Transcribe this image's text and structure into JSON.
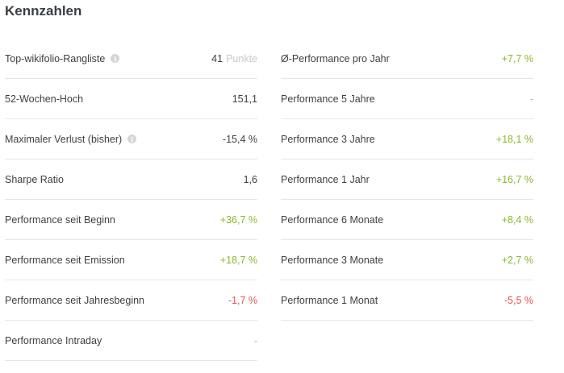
{
  "title": "Kennzahlen",
  "colors": {
    "positive": "#8cb82b",
    "negative": "#e9534f",
    "neutral": "#3c4146",
    "muted": "#c4c9cd",
    "divider": "#e3e6e9",
    "info_icon": "#d2d6da"
  },
  "left_rows": [
    {
      "label": "Top-wikifolio-Rangliste",
      "info_icon": "info-icon",
      "value": "41",
      "unit": "Punkte",
      "tone": "neutral"
    },
    {
      "label": "52-Wochen-Hoch",
      "value": "151,1",
      "tone": "neutral"
    },
    {
      "label": "Maximaler Verlust (bisher)",
      "info_icon": "info-icon",
      "value": "-15,4 %",
      "tone": "neutral"
    },
    {
      "label": "Sharpe Ratio",
      "value": "1,6",
      "tone": "neutral"
    },
    {
      "label": "Performance seit Beginn",
      "value": "+36,7 %",
      "tone": "positive"
    },
    {
      "label": "Performance seit Emission",
      "value": "+18,7 %",
      "tone": "positive"
    },
    {
      "label": "Performance seit Jahresbeginn",
      "value": "-1,7 %",
      "tone": "negative"
    },
    {
      "label": "Performance Intraday",
      "value": "-",
      "tone": "empty"
    }
  ],
  "right_rows": [
    {
      "label": "Ø-Performance pro Jahr",
      "value": "+7,7 %",
      "tone": "positive"
    },
    {
      "label": "Performance 5 Jahre",
      "value": "-",
      "tone": "empty"
    },
    {
      "label": "Performance 3 Jahre",
      "value": "+18,1 %",
      "tone": "positive"
    },
    {
      "label": "Performance 1 Jahr",
      "value": "+16,7 %",
      "tone": "positive"
    },
    {
      "label": "Performance 6 Monate",
      "value": "+8,4 %",
      "tone": "positive"
    },
    {
      "label": "Performance 3 Monate",
      "value": "+2,7 %",
      "tone": "positive"
    },
    {
      "label": "Performance 1 Monat",
      "value": "-5,5 %",
      "tone": "negative"
    }
  ]
}
